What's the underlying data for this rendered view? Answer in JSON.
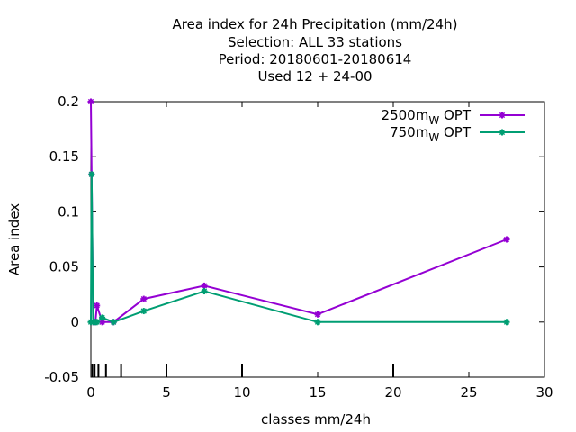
{
  "chart_data": {
    "type": "line",
    "title_lines": [
      "Area index  for 24h Precipitation (mm/24h)",
      "Selection: ALL     33 stations",
      "Period: 20180601-20180614",
      "Used  12 + 24-00"
    ],
    "xlabel": "classes mm/24h",
    "ylabel": "Area index",
    "xlim": [
      0,
      30
    ],
    "ylim": [
      -0.05,
      0.2
    ],
    "x_ticks": [
      0,
      5,
      10,
      15,
      20,
      25,
      30
    ],
    "x_tick_labels": [
      "0",
      "5",
      "10",
      "15",
      "20",
      "25",
      "30"
    ],
    "y_ticks": [
      -0.05,
      0,
      0.05,
      0.1,
      0.15,
      0.2
    ],
    "y_tick_labels": [
      "-0.05",
      "0",
      "0.05",
      "0.1",
      "0.15",
      "0.2"
    ],
    "grid": false,
    "legend_position": "top-right",
    "class_markers_x": [
      0.1,
      0.25,
      0.5,
      1,
      2,
      5,
      10,
      20
    ],
    "series": [
      {
        "name": "2500m",
        "name_sub": "W",
        "name_suffix": "OPT",
        "color": "#9400d3",
        "x": [
          0,
          0.05,
          0.15,
          0.3,
          0.4,
          0.75,
          1.5,
          3.5,
          7.5,
          15,
          27.5
        ],
        "y": [
          0.2,
          0.134,
          0.0,
          0.0,
          0.015,
          0.0,
          0.0,
          0.021,
          0.033,
          0.007,
          0.075
        ]
      },
      {
        "name": "750m",
        "name_sub": "W",
        "name_suffix": "OPT",
        "color": "#009e73",
        "x": [
          0,
          0.05,
          0.15,
          0.3,
          0.4,
          0.75,
          1.5,
          3.5,
          7.5,
          15,
          27.5
        ],
        "y": [
          0.0,
          0.134,
          0.0,
          0.0,
          0.0,
          0.004,
          0.0,
          0.01,
          0.028,
          0.0,
          0.0
        ]
      }
    ]
  }
}
